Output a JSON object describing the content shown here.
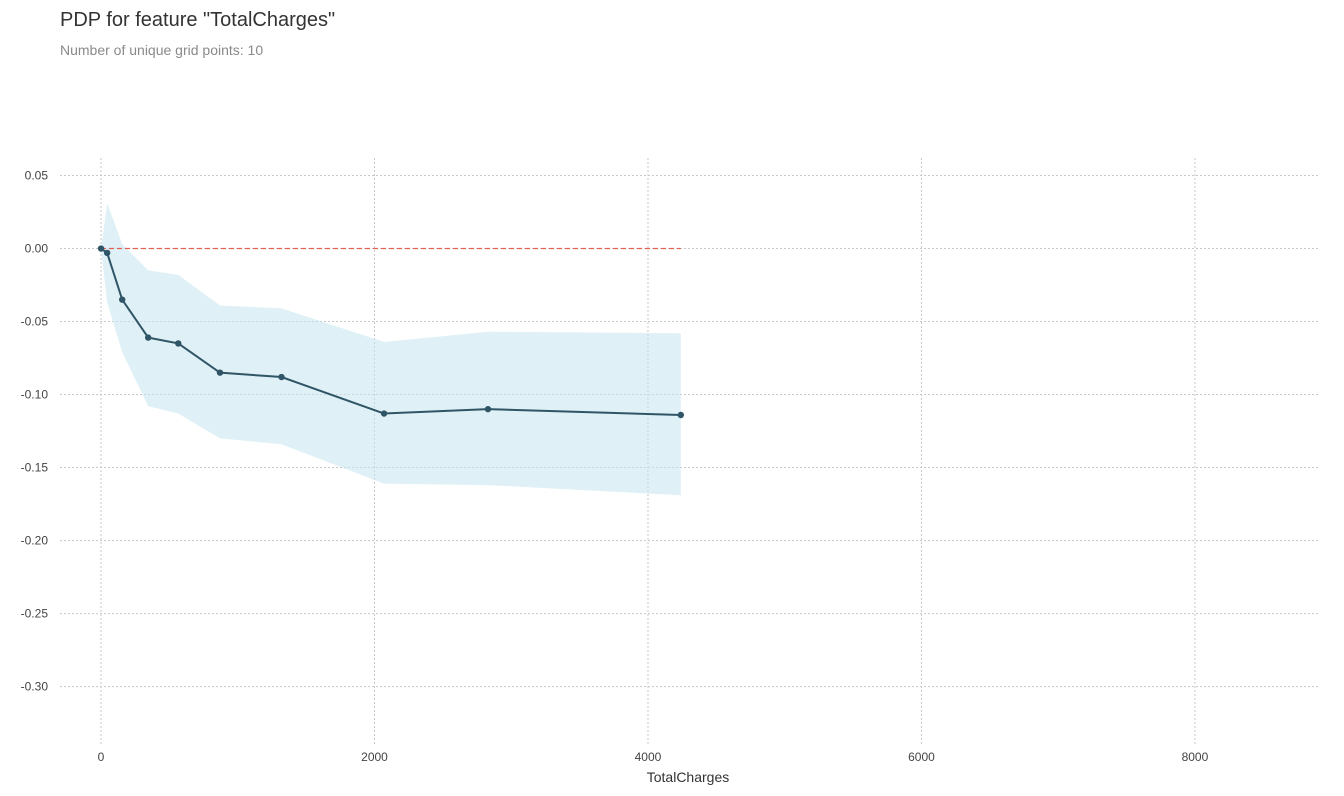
{
  "header": {
    "title": "PDP for feature \"TotalCharges\"",
    "subtitle": "Number of unique grid points: 10"
  },
  "chart_data": {
    "type": "line",
    "title": "PDP for feature \"TotalCharges\"",
    "subtitle": "Number of unique grid points: 10",
    "xlabel": "TotalCharges",
    "ylabel": "",
    "xlim": [
      -300,
      8900
    ],
    "ylim": [
      -0.34,
      0.062
    ],
    "xticks": [
      0,
      2000,
      4000,
      6000,
      8000
    ],
    "yticks": [
      0.05,
      0.0,
      -0.05,
      -0.1,
      -0.15,
      -0.2,
      -0.25,
      -0.3
    ],
    "xtick_labels": [
      "0",
      "2000",
      "4000",
      "6000",
      "8000"
    ],
    "ytick_labels": [
      "0.05",
      "0.00",
      "-0.05",
      "-0.10",
      "-0.15",
      "-0.20",
      "-0.25",
      "-0.30"
    ],
    "grid": true,
    "series": [
      {
        "x": [
          0,
          45,
          155,
          345,
          565,
          870,
          1320,
          2070,
          2830,
          4240
        ],
        "values": [
          0.0,
          -0.003,
          -0.035,
          -0.061,
          -0.065,
          -0.085,
          -0.088,
          -0.113,
          -0.11,
          -0.114
        ],
        "upper": [
          0.0,
          0.031,
          0.003,
          -0.015,
          -0.018,
          -0.039,
          -0.041,
          -0.064,
          -0.057,
          -0.058
        ],
        "lower": [
          0.0,
          -0.037,
          -0.071,
          -0.108,
          -0.113,
          -0.13,
          -0.134,
          -0.161,
          -0.162,
          -0.169
        ]
      }
    ],
    "baseline": 0.0,
    "colors": {
      "line": "#2f5566",
      "band": "#c5e3ee",
      "baseline": "#e06050",
      "grid": "#c8c8c8"
    }
  }
}
